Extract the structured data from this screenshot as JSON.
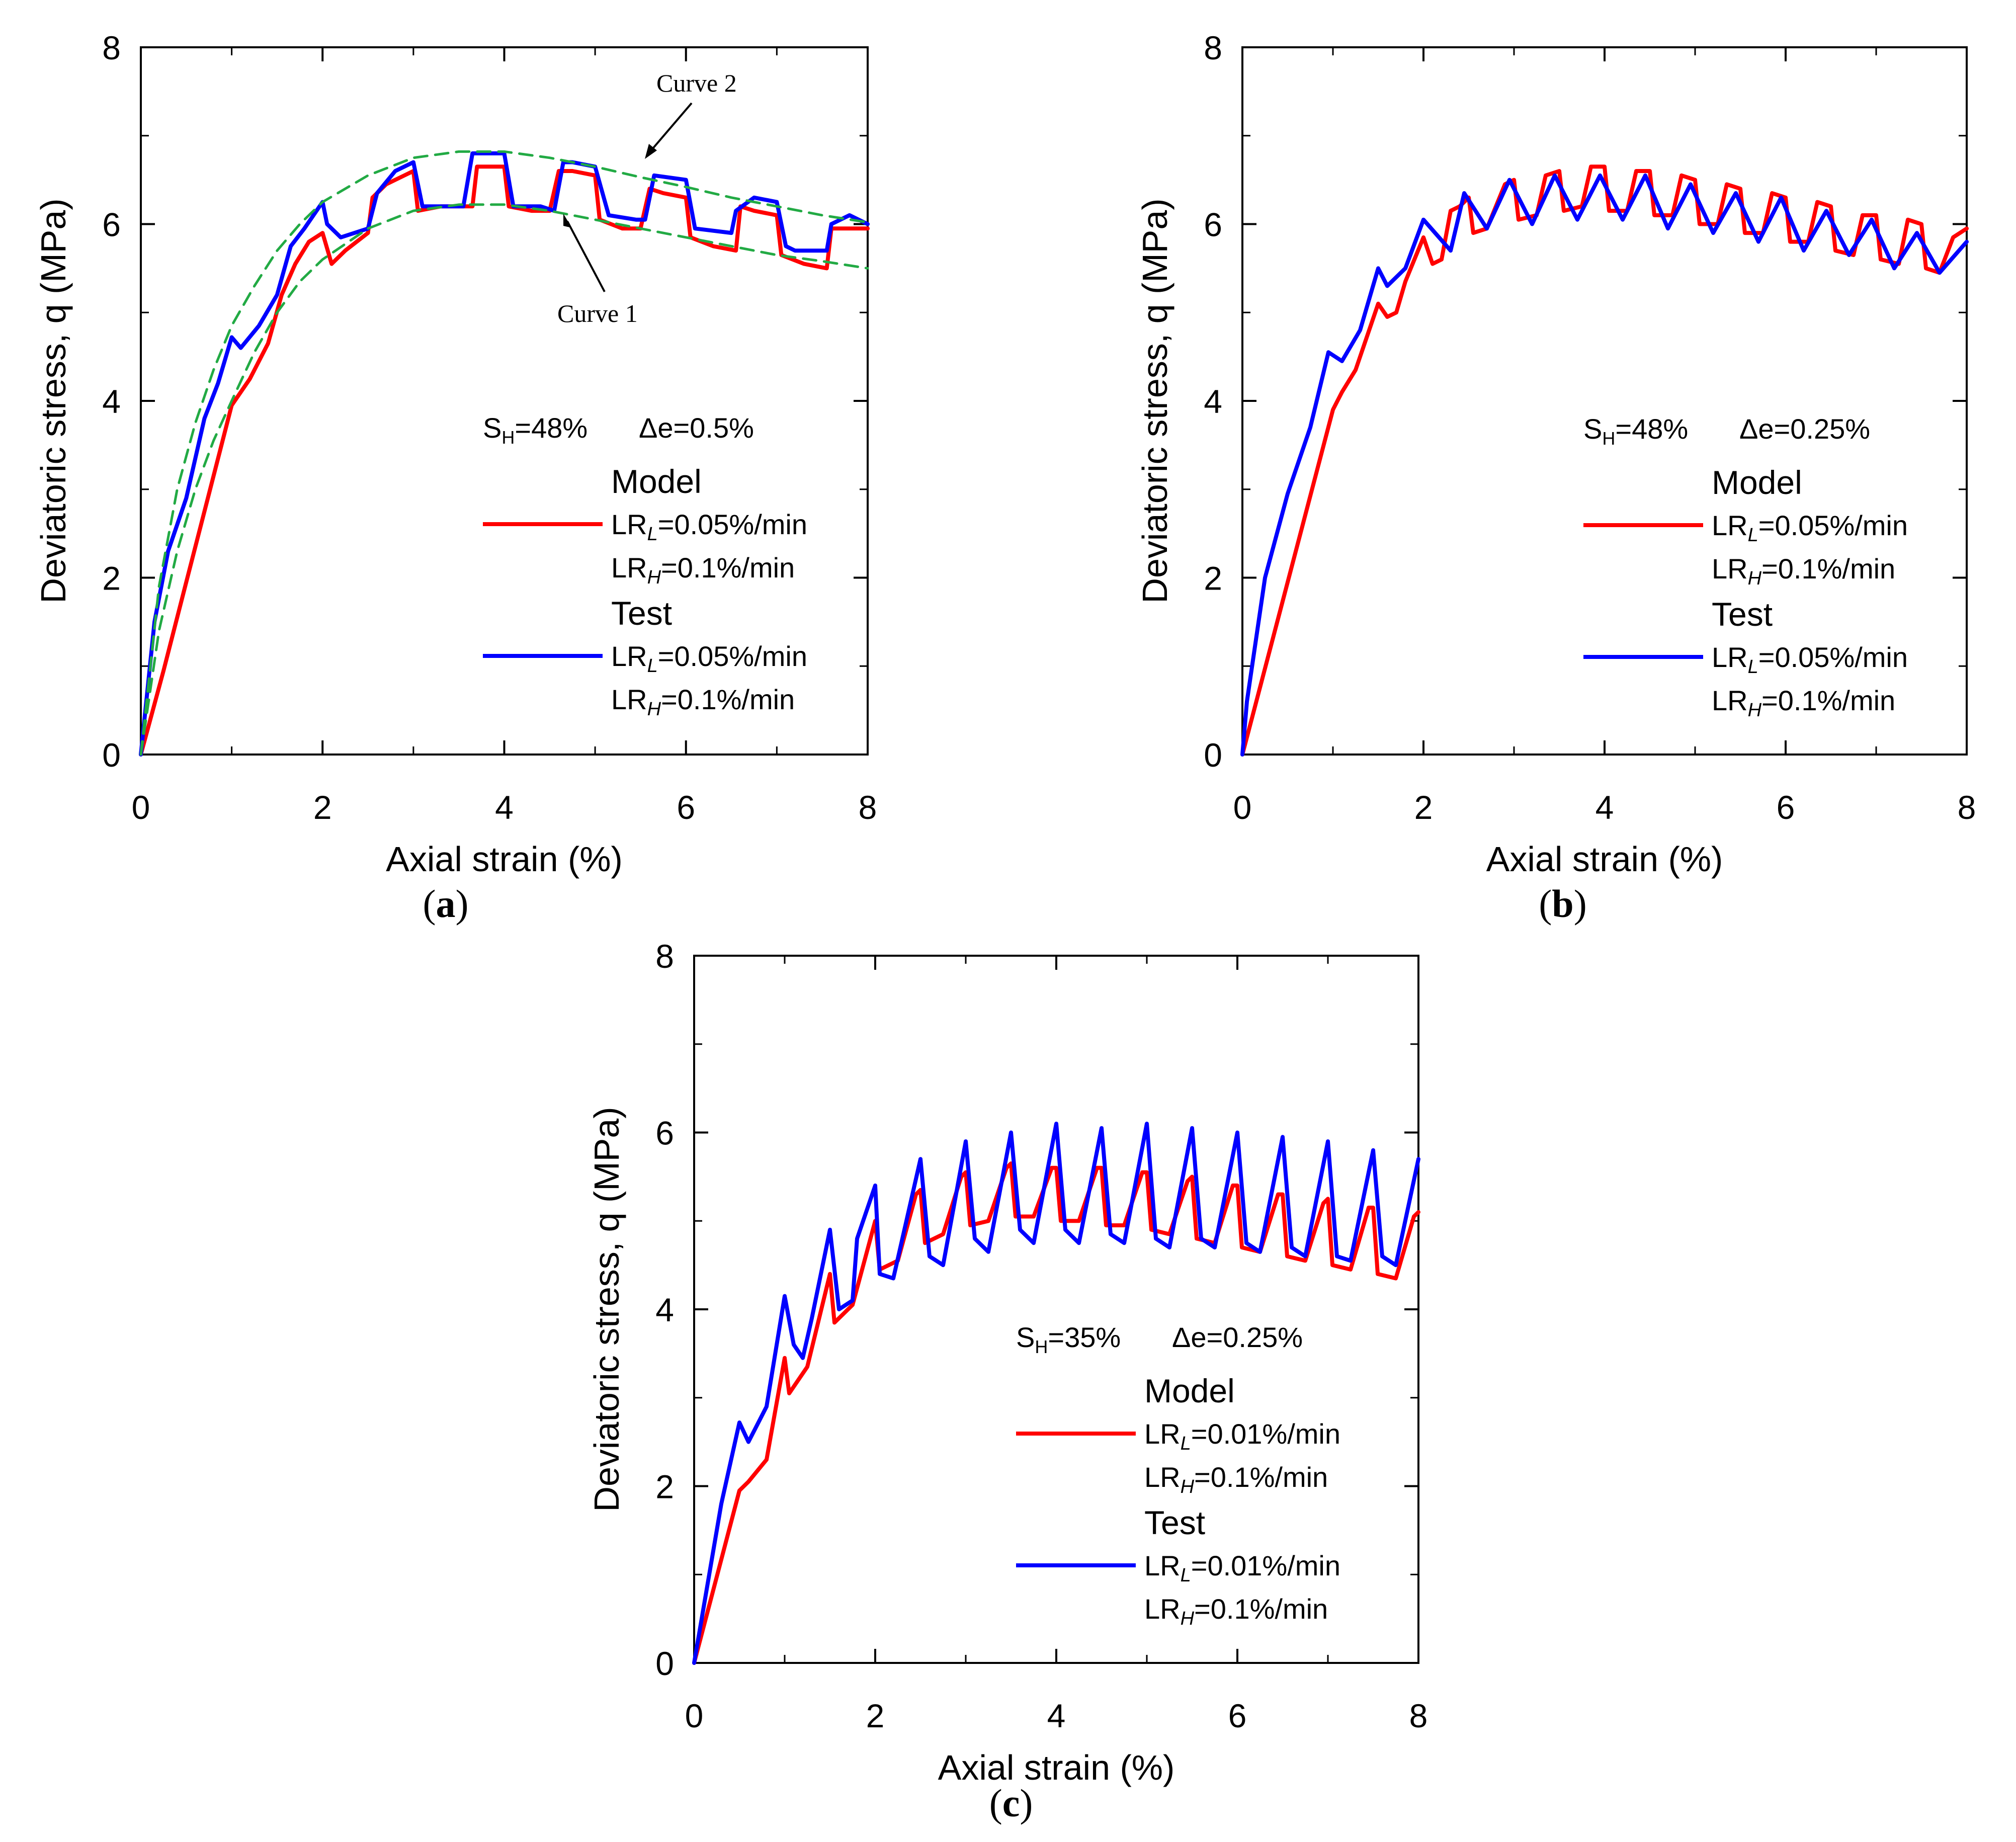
{
  "chart_data": [
    {
      "id": "a",
      "type": "line",
      "xlabel": "Axial strain (%)",
      "ylabel": "Deviatoric stress, q (MPa)",
      "xlim": [
        0,
        8
      ],
      "ylim": [
        0,
        8
      ],
      "xticks": [
        "0",
        "2",
        "4",
        "6",
        "8"
      ],
      "yticks": [
        "0",
        "2",
        "4",
        "6",
        "8"
      ],
      "caption": "a",
      "legend": {
        "title": "S_H=48%    Δe=0.5%",
        "sh_value": "=48%",
        "de_text": "Δe=0.5%",
        "model_label": "Model",
        "test_label": "Test",
        "lr_low": "=0.05%/min",
        "lr_high": "=0.1%/min"
      },
      "annotations": {
        "curve1": "Curve 1",
        "curve2": "Curve 2"
      },
      "series": [
        {
          "name": "Model",
          "color": "#ff0000",
          "x": [
            0,
            0.25,
            0.5,
            0.75,
            1.0,
            1.2,
            1.4,
            1.55,
            1.7,
            1.85,
            2.0,
            2.1,
            2.25,
            2.5,
            2.55,
            2.7,
            2.9,
            3.0,
            3.05,
            3.3,
            3.5,
            3.65,
            3.7,
            4.0,
            4.05,
            4.3,
            4.5,
            4.6,
            4.75,
            5.0,
            5.05,
            5.3,
            5.5,
            5.6,
            5.75,
            6.0,
            6.05,
            6.3,
            6.55,
            6.6,
            6.75,
            7.0,
            7.05,
            7.3,
            7.55,
            7.6,
            7.8,
            8.0
          ],
          "y": [
            0,
            0.95,
            1.95,
            2.95,
            3.95,
            4.25,
            4.65,
            5.2,
            5.55,
            5.8,
            5.9,
            5.55,
            5.7,
            5.9,
            6.3,
            6.45,
            6.55,
            6.6,
            6.15,
            6.2,
            6.2,
            6.2,
            6.65,
            6.65,
            6.2,
            6.15,
            6.15,
            6.6,
            6.6,
            6.55,
            6.05,
            5.95,
            5.95,
            6.4,
            6.35,
            6.3,
            5.85,
            5.75,
            5.7,
            6.2,
            6.15,
            6.1,
            5.65,
            5.55,
            5.5,
            5.95,
            5.95,
            5.95
          ]
        },
        {
          "name": "Test",
          "color": "#0000ff",
          "x": [
            0,
            0.15,
            0.3,
            0.5,
            0.7,
            0.85,
            1.0,
            1.1,
            1.3,
            1.5,
            1.65,
            1.8,
            2.0,
            2.05,
            2.2,
            2.5,
            2.6,
            2.8,
            3.0,
            3.1,
            3.3,
            3.55,
            3.65,
            4.0,
            4.1,
            4.4,
            4.55,
            4.65,
            4.75,
            5.0,
            5.15,
            5.45,
            5.55,
            5.65,
            6.0,
            6.1,
            6.5,
            6.55,
            6.75,
            7.0,
            7.1,
            7.2,
            7.55,
            7.6,
            7.8,
            8.0
          ],
          "y": [
            0,
            1.5,
            2.3,
            2.9,
            3.8,
            4.2,
            4.72,
            4.6,
            4.85,
            5.2,
            5.75,
            5.95,
            6.25,
            6.0,
            5.85,
            5.95,
            6.35,
            6.6,
            6.7,
            6.2,
            6.2,
            6.2,
            6.8,
            6.8,
            6.2,
            6.2,
            6.15,
            6.7,
            6.7,
            6.65,
            6.1,
            6.05,
            6.05,
            6.55,
            6.5,
            5.95,
            5.9,
            6.15,
            6.3,
            6.25,
            5.75,
            5.7,
            5.7,
            6.0,
            6.1,
            6.0
          ]
        },
        {
          "name": "Curve 2",
          "color": "#22aa44",
          "dashed": true,
          "x": [
            0,
            0.2,
            0.4,
            0.6,
            0.8,
            1.0,
            1.25,
            1.5,
            1.75,
            2.0,
            2.5,
            3.0,
            3.5,
            4.0,
            4.5,
            5.0,
            5.5,
            6.0,
            6.5,
            7.0,
            7.5,
            8.0
          ],
          "y": [
            0,
            1.9,
            3.0,
            3.75,
            4.35,
            4.85,
            5.3,
            5.7,
            6.0,
            6.25,
            6.55,
            6.75,
            6.82,
            6.82,
            6.75,
            6.65,
            6.53,
            6.42,
            6.3,
            6.2,
            6.1,
            6.02
          ]
        },
        {
          "name": "Curve 1",
          "color": "#22aa44",
          "dashed": true,
          "x": [
            0,
            0.2,
            0.4,
            0.6,
            0.8,
            1.0,
            1.25,
            1.5,
            1.75,
            2.0,
            2.5,
            3.0,
            3.5,
            4.0,
            4.5,
            5.0,
            5.5,
            6.0,
            6.5,
            7.0,
            7.5,
            8.0
          ],
          "y": [
            0,
            1.4,
            2.3,
            3.0,
            3.55,
            4.0,
            4.55,
            5.0,
            5.35,
            5.6,
            5.95,
            6.15,
            6.22,
            6.22,
            6.15,
            6.05,
            5.95,
            5.85,
            5.75,
            5.65,
            5.58,
            5.5
          ]
        }
      ]
    },
    {
      "id": "b",
      "type": "line",
      "xlabel": "Axial strain (%)",
      "ylabel": "Deviatoric stress, q (MPa)",
      "xlim": [
        0,
        8
      ],
      "ylim": [
        0,
        8
      ],
      "xticks": [
        "0",
        "2",
        "4",
        "6",
        "8"
      ],
      "yticks": [
        "0",
        "2",
        "4",
        "6",
        "8"
      ],
      "caption": "b",
      "legend": {
        "title": "S_H=48%    Δe=0.25%",
        "sh_value": "=48%",
        "de_text": "Δe=0.25%",
        "model_label": "Model",
        "test_label": "Test",
        "lr_low": "=0.05%/min",
        "lr_high": "=0.1%/min"
      },
      "series": [
        {
          "name": "Model",
          "color": "#ff0000",
          "x": [
            0,
            0.5,
            1.0,
            1.1,
            1.25,
            1.5,
            1.6,
            1.7,
            1.8,
            2.0,
            2.1,
            2.2,
            2.3,
            2.4,
            2.5,
            2.55,
            2.7,
            2.9,
            3.0,
            3.05,
            3.25,
            3.35,
            3.5,
            3.55,
            3.75,
            3.85,
            4.0,
            4.05,
            4.25,
            4.35,
            4.5,
            4.55,
            4.75,
            4.85,
            5.0,
            5.05,
            5.25,
            5.35,
            5.5,
            5.55,
            5.75,
            5.85,
            6.0,
            6.05,
            6.25,
            6.35,
            6.5,
            6.55,
            6.75,
            6.85,
            7.0,
            7.05,
            7.25,
            7.35,
            7.5,
            7.55,
            7.7,
            7.85,
            8.0
          ],
          "y": [
            0,
            1.95,
            3.9,
            4.1,
            4.35,
            5.1,
            4.95,
            5.0,
            5.35,
            5.85,
            5.55,
            5.6,
            6.15,
            6.2,
            6.3,
            5.9,
            5.95,
            6.45,
            6.5,
            6.05,
            6.1,
            6.55,
            6.6,
            6.15,
            6.2,
            6.65,
            6.65,
            6.15,
            6.15,
            6.6,
            6.6,
            6.1,
            6.1,
            6.55,
            6.5,
            6.0,
            6.0,
            6.45,
            6.4,
            5.9,
            5.9,
            6.35,
            6.3,
            5.8,
            5.8,
            6.25,
            6.2,
            5.7,
            5.65,
            6.1,
            6.1,
            5.6,
            5.55,
            6.05,
            6.0,
            5.5,
            5.45,
            5.85,
            5.95
          ]
        },
        {
          "name": "Test",
          "color": "#0000ff",
          "x": [
            0,
            0.05,
            0.25,
            0.5,
            0.75,
            0.95,
            1.1,
            1.3,
            1.5,
            1.6,
            1.8,
            2.0,
            2.3,
            2.45,
            2.7,
            2.95,
            3.2,
            3.45,
            3.7,
            3.95,
            4.2,
            4.45,
            4.7,
            4.95,
            5.2,
            5.45,
            5.7,
            5.95,
            6.2,
            6.45,
            6.7,
            6.95,
            7.2,
            7.45,
            7.7,
            8.0
          ],
          "y": [
            0,
            0.6,
            2.0,
            2.95,
            3.7,
            4.55,
            4.45,
            4.8,
            5.5,
            5.3,
            5.5,
            6.05,
            5.7,
            6.35,
            5.95,
            6.5,
            6.0,
            6.55,
            6.05,
            6.55,
            6.05,
            6.55,
            5.95,
            6.45,
            5.9,
            6.35,
            5.8,
            6.3,
            5.7,
            6.15,
            5.65,
            6.05,
            5.5,
            5.9,
            5.45,
            5.8
          ]
        }
      ]
    },
    {
      "id": "c",
      "type": "line",
      "xlabel": "Axial strain (%)",
      "ylabel": "Deviatoric stress, q (MPa)",
      "xlim": [
        0,
        8
      ],
      "ylim": [
        0,
        8
      ],
      "xticks": [
        "0",
        "2",
        "4",
        "6",
        "8"
      ],
      "yticks": [
        "0",
        "2",
        "4",
        "6",
        "8"
      ],
      "caption": "c",
      "legend": {
        "title": "S_H=35%    Δe=0.25%",
        "sh_value": "=35%",
        "de_text": "Δe=0.25%",
        "model_label": "Model",
        "test_label": "Test",
        "lr_low": "=0.01%/min",
        "lr_high": "=0.1%/min"
      },
      "series": [
        {
          "name": "Model",
          "color": "#ff0000",
          "x": [
            0,
            0.5,
            0.6,
            0.8,
            1.0,
            1.05,
            1.25,
            1.5,
            1.55,
            1.75,
            2.0,
            2.05,
            2.25,
            2.45,
            2.5,
            2.55,
            2.75,
            2.95,
            3.0,
            3.05,
            3.25,
            3.45,
            3.5,
            3.55,
            3.75,
            3.95,
            4.0,
            4.05,
            4.25,
            4.45,
            4.5,
            4.55,
            4.75,
            4.95,
            5.0,
            5.05,
            5.25,
            5.45,
            5.5,
            5.55,
            5.75,
            5.95,
            6.0,
            6.05,
            6.25,
            6.45,
            6.5,
            6.55,
            6.75,
            6.95,
            7.0,
            7.05,
            7.25,
            7.45,
            7.5,
            7.55,
            7.75,
            7.95,
            8.0
          ],
          "y": [
            0,
            1.95,
            2.05,
            2.3,
            3.45,
            3.05,
            3.35,
            4.4,
            3.85,
            4.05,
            5.0,
            4.45,
            4.55,
            5.3,
            5.35,
            4.75,
            4.85,
            5.5,
            5.55,
            4.95,
            5.0,
            5.6,
            5.65,
            5.05,
            5.05,
            5.6,
            5.6,
            5.0,
            5.0,
            5.6,
            5.6,
            4.95,
            4.95,
            5.55,
            5.55,
            4.9,
            4.85,
            5.45,
            5.5,
            4.8,
            4.75,
            5.4,
            5.4,
            4.7,
            4.65,
            5.3,
            5.3,
            4.6,
            4.55,
            5.2,
            5.25,
            4.5,
            4.45,
            5.15,
            5.15,
            4.4,
            4.35,
            5.05,
            5.1
          ]
        },
        {
          "name": "Test",
          "color": "#0000ff",
          "x": [
            0,
            0.3,
            0.5,
            0.6,
            0.8,
            1.0,
            1.1,
            1.2,
            1.3,
            1.5,
            1.6,
            1.75,
            1.8,
            2.0,
            2.05,
            2.2,
            2.5,
            2.6,
            2.75,
            3.0,
            3.1,
            3.25,
            3.5,
            3.6,
            3.75,
            4.0,
            4.1,
            4.25,
            4.5,
            4.6,
            4.75,
            5.0,
            5.1,
            5.25,
            5.5,
            5.6,
            5.75,
            6.0,
            6.1,
            6.25,
            6.5,
            6.6,
            6.75,
            7.0,
            7.1,
            7.25,
            7.5,
            7.6,
            7.75,
            8.0
          ],
          "y": [
            0,
            1.8,
            2.72,
            2.5,
            2.9,
            4.15,
            3.6,
            3.45,
            3.9,
            4.9,
            4.0,
            4.1,
            4.8,
            5.4,
            4.4,
            4.35,
            5.7,
            4.6,
            4.5,
            5.9,
            4.8,
            4.65,
            6.0,
            4.9,
            4.75,
            6.1,
            4.9,
            4.75,
            6.05,
            4.85,
            4.75,
            6.1,
            4.8,
            4.7,
            6.05,
            4.8,
            4.7,
            6.0,
            4.75,
            4.65,
            5.95,
            4.7,
            4.6,
            5.9,
            4.6,
            4.55,
            5.8,
            4.6,
            4.5,
            5.7
          ]
        }
      ]
    }
  ]
}
